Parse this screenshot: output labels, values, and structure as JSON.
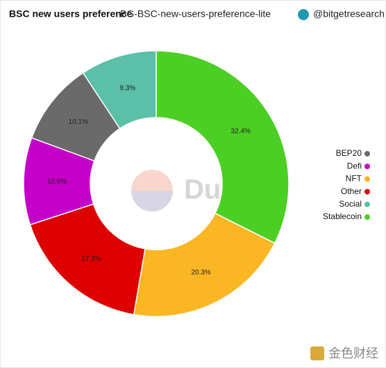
{
  "chart_data": {
    "type": "donut",
    "title": "BSC new users preference",
    "subtitle": "BG-BSC-new-users-preference-lite",
    "author": "@bitgetresearch",
    "watermark": "Dune",
    "source_logo": "金色财经",
    "categories": [
      "Stablecoin",
      "NFT",
      "Other",
      "Defi",
      "BEP20",
      "Social"
    ],
    "values": [
      32.4,
      20.3,
      17.3,
      10.6,
      10.1,
      9.3
    ],
    "value_labels": [
      "32.4%",
      "20.3%",
      "17.3%",
      "10.6%",
      "10.1%",
      "9.3%"
    ],
    "colors": [
      "#4ccf24",
      "#fbb623",
      "#dd0000",
      "#c400c8",
      "#6a6a6a",
      "#5cbfa8"
    ],
    "legend": [
      "BEP20",
      "Defi",
      "NFT",
      "Other",
      "Social",
      "Stablecoin"
    ],
    "legend_position": "right"
  }
}
